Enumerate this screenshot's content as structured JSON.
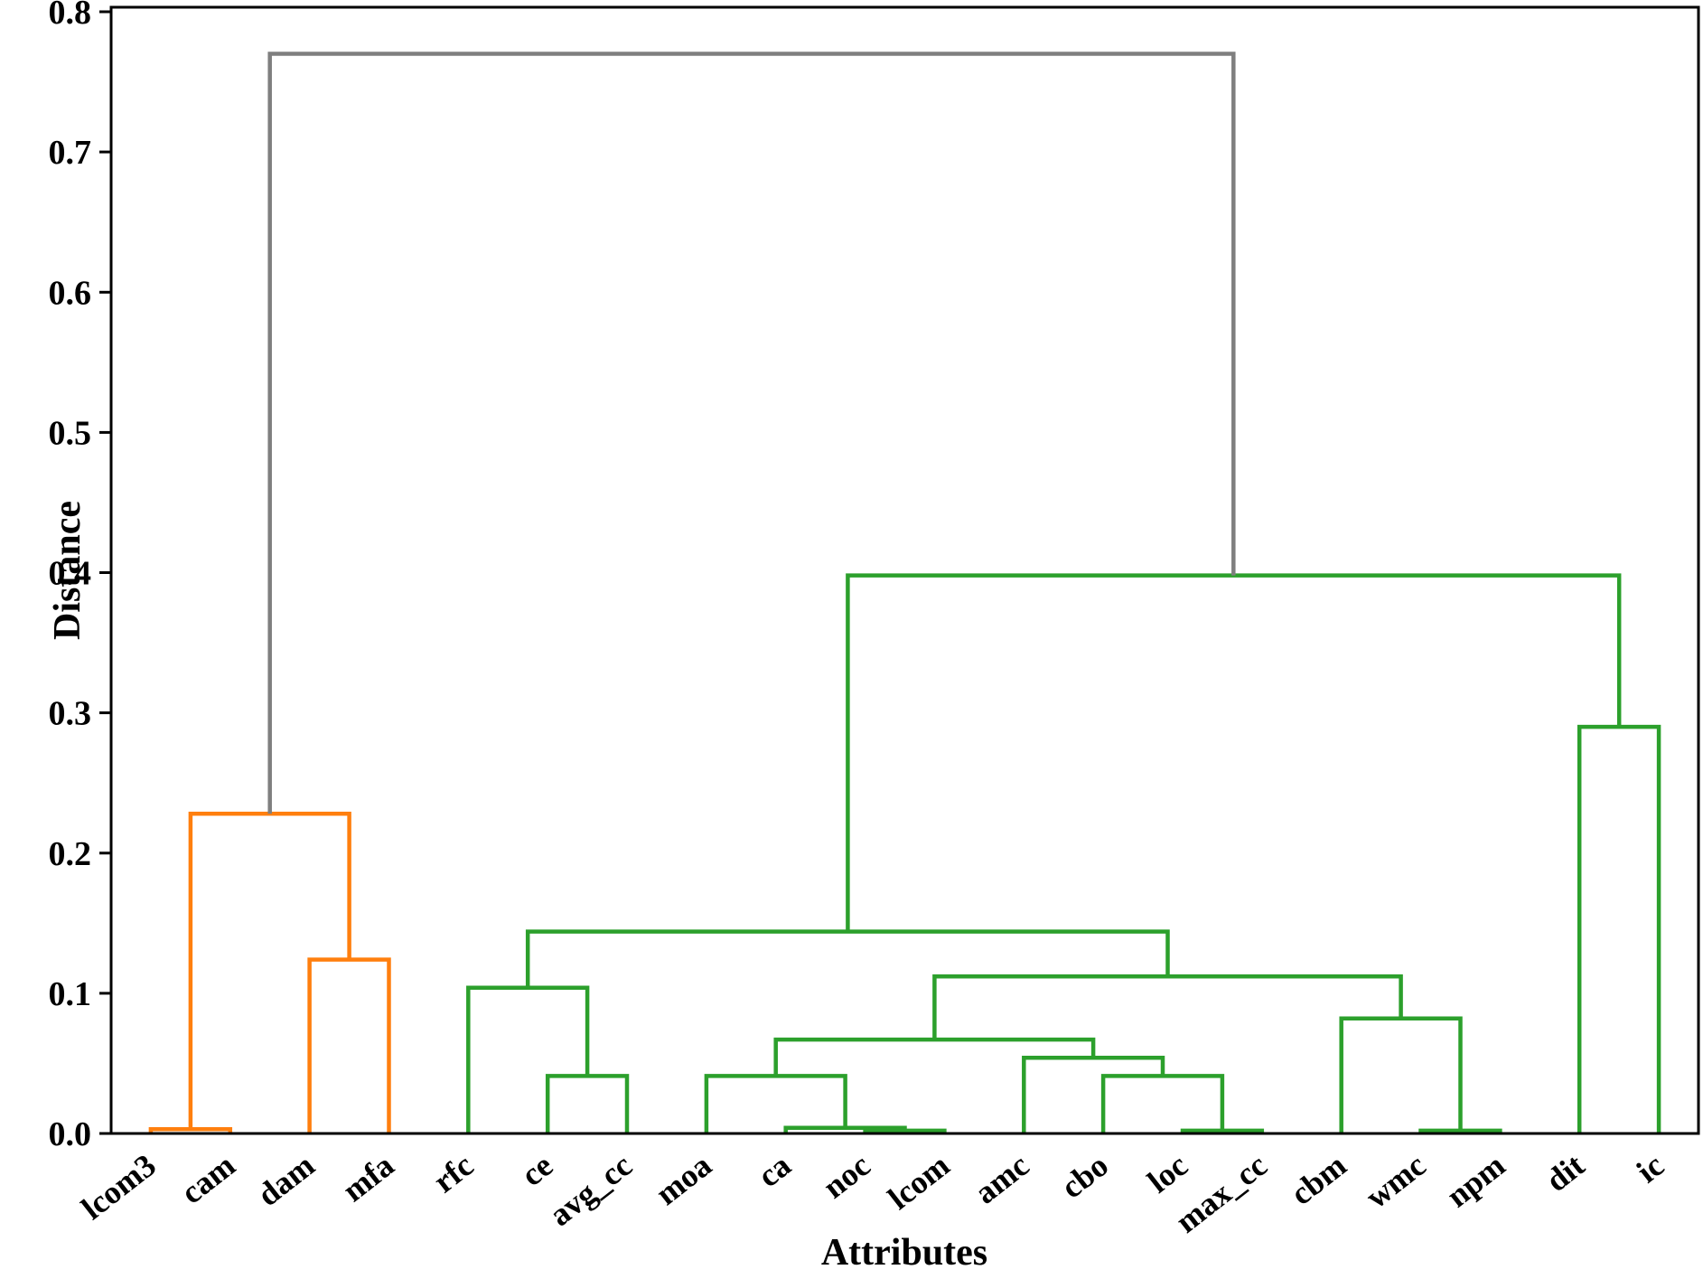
{
  "chart_data": {
    "type": "dendrogram",
    "title": "",
    "xlabel": "Attributes",
    "ylabel": "Distance",
    "orientation": "top",
    "grid": false,
    "legend": null,
    "yaxis": {
      "ticks": [
        "0.0",
        "0.1",
        "0.2",
        "0.3",
        "0.4",
        "0.5",
        "0.6",
        "0.7",
        "0.8"
      ],
      "ylim": [
        0,
        0.803
      ]
    },
    "leaves": [
      "lcom3",
      "cam",
      "dam",
      "mfa",
      "rfc",
      "ce",
      "avg_cc",
      "moa",
      "ca",
      "noc",
      "lcom",
      "amc",
      "cbo",
      "loc",
      "max_cc",
      "cbm",
      "wmc",
      "npm",
      "dit",
      "ic"
    ],
    "merges": [
      {
        "left": "lcom3",
        "right": "cam",
        "height": 0.003,
        "color": "orange"
      },
      {
        "left": "dam",
        "right": "mfa",
        "height": 0.124,
        "color": "orange"
      },
      {
        "left": "#0",
        "right": "#1",
        "height": 0.228,
        "color": "orange"
      },
      {
        "left": "noc",
        "right": "lcom",
        "height": 0.002,
        "color": "green"
      },
      {
        "left": "ca",
        "right": "#3",
        "height": 0.004,
        "color": "green"
      },
      {
        "left": "moa",
        "right": "#4",
        "height": 0.041,
        "color": "green"
      },
      {
        "left": "loc",
        "right": "max_cc",
        "height": 0.002,
        "color": "green"
      },
      {
        "left": "cbo",
        "right": "#6",
        "height": 0.041,
        "color": "green"
      },
      {
        "left": "amc",
        "right": "#7",
        "height": 0.054,
        "color": "green"
      },
      {
        "left": "#5",
        "right": "#8",
        "height": 0.067,
        "color": "green"
      },
      {
        "left": "wmc",
        "right": "npm",
        "height": 0.002,
        "color": "green"
      },
      {
        "left": "cbm",
        "right": "#10",
        "height": 0.082,
        "color": "green"
      },
      {
        "left": "#9",
        "right": "#11",
        "height": 0.112,
        "color": "green"
      },
      {
        "left": "ce",
        "right": "avg_cc",
        "height": 0.041,
        "color": "green"
      },
      {
        "left": "rfc",
        "right": "#13",
        "height": 0.104,
        "color": "green"
      },
      {
        "left": "#14",
        "right": "#12",
        "height": 0.144,
        "color": "green"
      },
      {
        "left": "dit",
        "right": "ic",
        "height": 0.29,
        "color": "green"
      },
      {
        "left": "#15",
        "right": "#16",
        "height": 0.398,
        "color": "green"
      },
      {
        "left": "#2",
        "right": "#17",
        "height": 0.77,
        "color": "gray"
      }
    ],
    "colors": {
      "orange": "#ff7f0e",
      "green": "#2ca02c",
      "gray": "#7f7f7f",
      "axis": "#000000"
    }
  }
}
